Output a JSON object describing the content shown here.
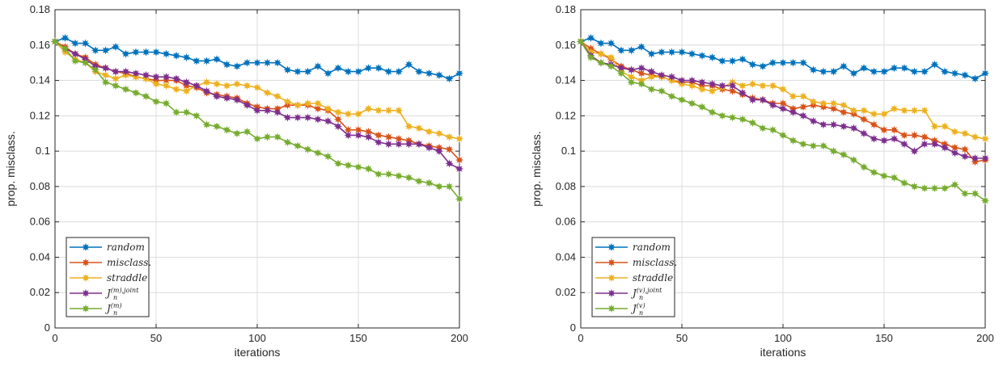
{
  "chart_data": [
    {
      "type": "line",
      "xlabel": "iterations",
      "ylabel": "prop. misclass.",
      "xlim": [
        0,
        200
      ],
      "ylim": [
        0,
        0.18
      ],
      "xticks": [
        "0",
        "50",
        "100",
        "150",
        "200"
      ],
      "yticks": [
        "0",
        "0.02",
        "0.04",
        "0.06",
        "0.08",
        "0.1",
        "0.12",
        "0.14",
        "0.16",
        "0.18"
      ],
      "grid": true,
      "legend_position": "bottom-left",
      "x": [
        0,
        5,
        10,
        15,
        20,
        25,
        30,
        35,
        40,
        45,
        50,
        55,
        60,
        65,
        70,
        75,
        80,
        85,
        90,
        95,
        100,
        105,
        110,
        115,
        120,
        125,
        130,
        135,
        140,
        145,
        150,
        155,
        160,
        165,
        170,
        175,
        180,
        185,
        190,
        195,
        200
      ],
      "series": [
        {
          "name": "random",
          "color": "#0072BD",
          "values": [
            0.162,
            0.164,
            0.161,
            0.161,
            0.157,
            0.157,
            0.159,
            0.155,
            0.156,
            0.156,
            0.156,
            0.155,
            0.154,
            0.153,
            0.151,
            0.151,
            0.152,
            0.149,
            0.148,
            0.15,
            0.15,
            0.15,
            0.15,
            0.146,
            0.145,
            0.145,
            0.148,
            0.144,
            0.147,
            0.145,
            0.145,
            0.147,
            0.147,
            0.145,
            0.145,
            0.149,
            0.145,
            0.144,
            0.143,
            0.141,
            0.144
          ]
        },
        {
          "name": "misclass.",
          "color": "#D95319",
          "values": [
            0.162,
            0.159,
            0.155,
            0.153,
            0.149,
            0.147,
            0.145,
            0.144,
            0.142,
            0.141,
            0.14,
            0.14,
            0.14,
            0.137,
            0.136,
            0.133,
            0.132,
            0.131,
            0.13,
            0.127,
            0.125,
            0.124,
            0.124,
            0.126,
            0.126,
            0.126,
            0.124,
            0.123,
            0.118,
            0.112,
            0.112,
            0.111,
            0.109,
            0.108,
            0.107,
            0.106,
            0.104,
            0.103,
            0.102,
            0.101,
            0.095
          ]
        },
        {
          "name": "straddle",
          "color": "#EDB120",
          "values": [
            0.162,
            0.156,
            0.152,
            0.15,
            0.145,
            0.143,
            0.141,
            0.143,
            0.142,
            0.141,
            0.138,
            0.137,
            0.135,
            0.134,
            0.137,
            0.139,
            0.138,
            0.137,
            0.138,
            0.137,
            0.136,
            0.133,
            0.131,
            0.128,
            0.126,
            0.127,
            0.127,
            0.124,
            0.122,
            0.121,
            0.121,
            0.124,
            0.123,
            0.123,
            0.123,
            0.114,
            0.113,
            0.111,
            0.11,
            0.108,
            0.107
          ]
        },
        {
          "name": "J_n^{(m),joint}",
          "color": "#7E2F8E",
          "values": [
            0.162,
            0.158,
            0.155,
            0.152,
            0.148,
            0.147,
            0.145,
            0.145,
            0.144,
            0.143,
            0.142,
            0.142,
            0.141,
            0.139,
            0.137,
            0.134,
            0.131,
            0.13,
            0.129,
            0.126,
            0.123,
            0.123,
            0.122,
            0.119,
            0.119,
            0.119,
            0.118,
            0.117,
            0.114,
            0.109,
            0.109,
            0.108,
            0.105,
            0.104,
            0.104,
            0.104,
            0.104,
            0.102,
            0.1,
            0.093,
            0.09
          ]
        },
        {
          "name": "J_n^{(m)}",
          "color": "#77AC30",
          "values": [
            0.162,
            0.158,
            0.151,
            0.15,
            0.146,
            0.139,
            0.137,
            0.135,
            0.133,
            0.131,
            0.128,
            0.127,
            0.122,
            0.122,
            0.12,
            0.115,
            0.114,
            0.112,
            0.11,
            0.111,
            0.107,
            0.108,
            0.108,
            0.105,
            0.103,
            0.101,
            0.099,
            0.097,
            0.093,
            0.092,
            0.091,
            0.09,
            0.087,
            0.087,
            0.086,
            0.085,
            0.083,
            0.082,
            0.08,
            0.08,
            0.073
          ]
        }
      ]
    },
    {
      "type": "line",
      "xlabel": "iterations",
      "ylabel": "prop. misclass.",
      "xlim": [
        0,
        200
      ],
      "ylim": [
        0,
        0.18
      ],
      "xticks": [
        "0",
        "50",
        "100",
        "150",
        "200"
      ],
      "yticks": [
        "0",
        "0.02",
        "0.04",
        "0.06",
        "0.08",
        "0.1",
        "0.12",
        "0.14",
        "0.16",
        "0.18"
      ],
      "grid": true,
      "legend_position": "bottom-left",
      "x": [
        0,
        5,
        10,
        15,
        20,
        25,
        30,
        35,
        40,
        45,
        50,
        55,
        60,
        65,
        70,
        75,
        80,
        85,
        90,
        95,
        100,
        105,
        110,
        115,
        120,
        125,
        130,
        135,
        140,
        145,
        150,
        155,
        160,
        165,
        170,
        175,
        180,
        185,
        190,
        195,
        200
      ],
      "series": [
        {
          "name": "random",
          "color": "#0072BD",
          "values": [
            0.162,
            0.164,
            0.161,
            0.161,
            0.157,
            0.157,
            0.159,
            0.155,
            0.156,
            0.156,
            0.156,
            0.155,
            0.154,
            0.153,
            0.151,
            0.151,
            0.152,
            0.149,
            0.148,
            0.15,
            0.15,
            0.15,
            0.15,
            0.146,
            0.145,
            0.145,
            0.148,
            0.144,
            0.147,
            0.145,
            0.145,
            0.147,
            0.147,
            0.145,
            0.145,
            0.149,
            0.145,
            0.144,
            0.143,
            0.141,
            0.144
          ]
        },
        {
          "name": "misclass.",
          "color": "#D95319",
          "values": [
            0.162,
            0.158,
            0.155,
            0.152,
            0.148,
            0.146,
            0.144,
            0.143,
            0.142,
            0.14,
            0.139,
            0.139,
            0.137,
            0.137,
            0.135,
            0.134,
            0.132,
            0.13,
            0.129,
            0.127,
            0.127,
            0.124,
            0.125,
            0.126,
            0.125,
            0.124,
            0.122,
            0.121,
            0.118,
            0.115,
            0.112,
            0.112,
            0.109,
            0.109,
            0.108,
            0.106,
            0.104,
            0.102,
            0.101,
            0.094,
            0.095
          ]
        },
        {
          "name": "straddle",
          "color": "#EDB120",
          "values": [
            0.162,
            0.156,
            0.155,
            0.153,
            0.145,
            0.142,
            0.14,
            0.142,
            0.142,
            0.14,
            0.138,
            0.137,
            0.135,
            0.134,
            0.136,
            0.139,
            0.137,
            0.138,
            0.137,
            0.137,
            0.135,
            0.131,
            0.131,
            0.128,
            0.127,
            0.127,
            0.126,
            0.123,
            0.123,
            0.121,
            0.121,
            0.124,
            0.123,
            0.123,
            0.123,
            0.114,
            0.114,
            0.111,
            0.11,
            0.108,
            0.107
          ]
        },
        {
          "name": "J_n^{(v),joint}",
          "color": "#7E2F8E",
          "values": [
            0.162,
            0.154,
            0.15,
            0.149,
            0.147,
            0.146,
            0.147,
            0.145,
            0.143,
            0.142,
            0.14,
            0.14,
            0.139,
            0.138,
            0.137,
            0.137,
            0.133,
            0.129,
            0.129,
            0.126,
            0.124,
            0.122,
            0.12,
            0.117,
            0.115,
            0.115,
            0.114,
            0.113,
            0.11,
            0.107,
            0.106,
            0.107,
            0.104,
            0.1,
            0.104,
            0.104,
            0.102,
            0.099,
            0.097,
            0.096,
            0.096
          ]
        },
        {
          "name": "J_n^{(v)}",
          "color": "#77AC30",
          "values": [
            0.162,
            0.153,
            0.15,
            0.148,
            0.144,
            0.139,
            0.138,
            0.135,
            0.134,
            0.131,
            0.129,
            0.127,
            0.125,
            0.122,
            0.12,
            0.119,
            0.118,
            0.116,
            0.113,
            0.112,
            0.109,
            0.106,
            0.104,
            0.103,
            0.103,
            0.1,
            0.098,
            0.095,
            0.091,
            0.088,
            0.086,
            0.085,
            0.082,
            0.08,
            0.079,
            0.079,
            0.079,
            0.081,
            0.076,
            0.076,
            0.072
          ]
        }
      ]
    }
  ]
}
